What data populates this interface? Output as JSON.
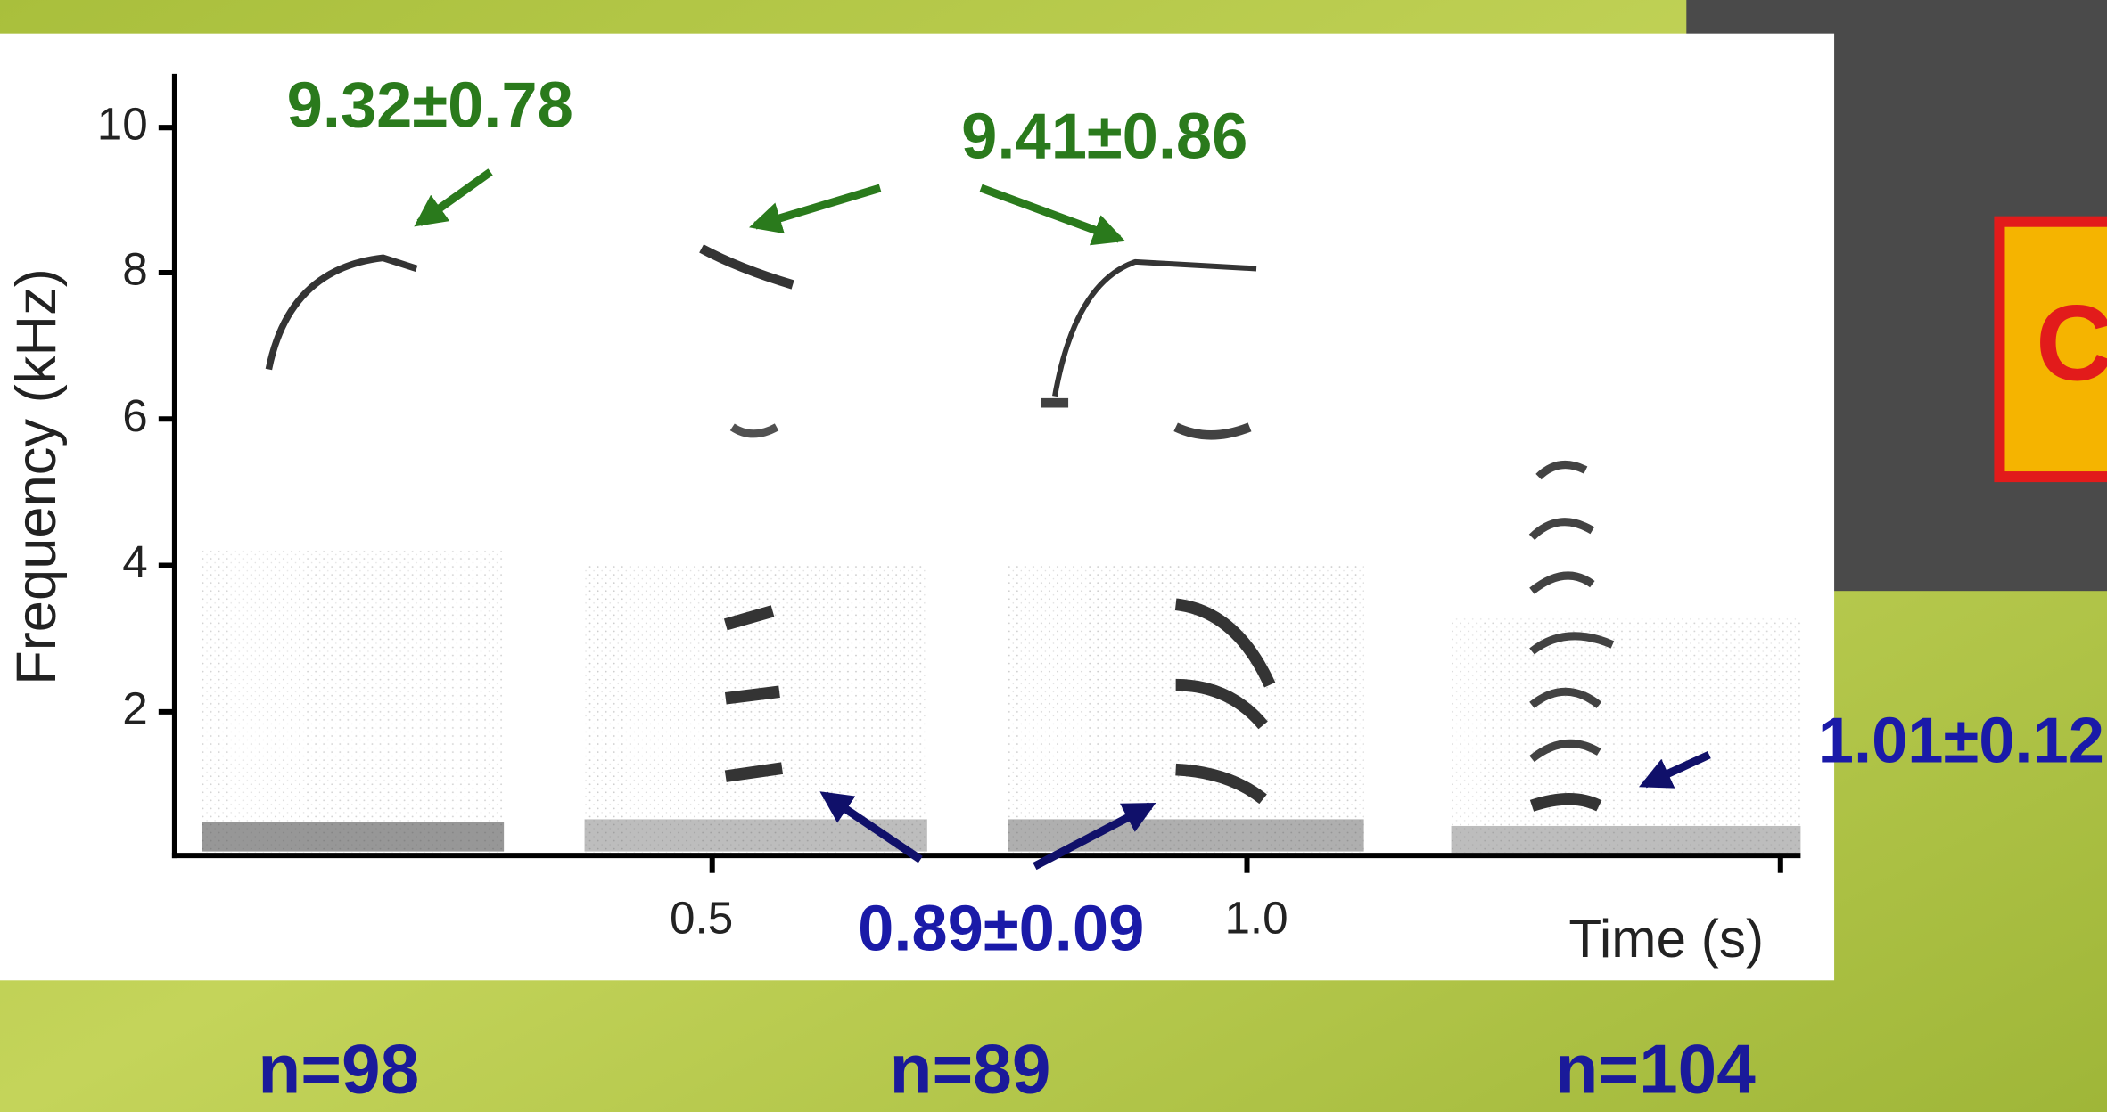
{
  "figure": {
    "y_label": "Frequency (kHz)",
    "y_ticks": [
      "10",
      "8",
      "6",
      "4",
      "2"
    ],
    "x_ticks": [
      "0.5",
      "1.0"
    ],
    "x_label": "Time (s)"
  },
  "annotations": {
    "top_left": "9.32±0.78",
    "top_middle": "9.41±0.86",
    "bottom_middle": "0.89±0.09",
    "bottom_right": "1.01±0.12"
  },
  "sample_sizes": [
    "n=98",
    "n=89",
    "n=104"
  ],
  "side_box": "C"
}
